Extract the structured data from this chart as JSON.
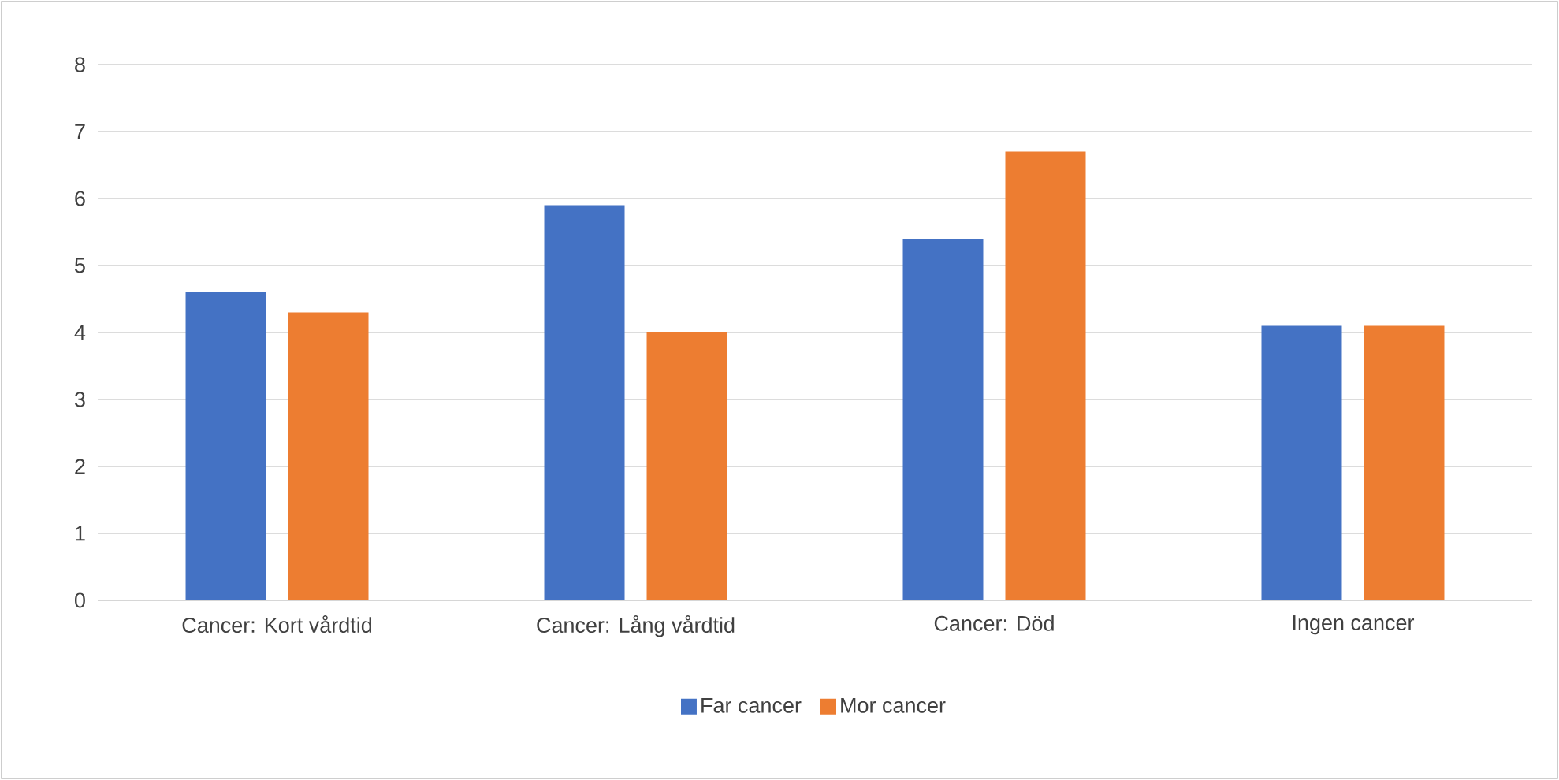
{
  "chart_data": {
    "type": "bar",
    "categories": [
      "Cancer: Kort vårdtid",
      "Cancer: Lång vårdtid",
      "Cancer: Död",
      "Ingen cancer"
    ],
    "series": [
      {
        "name": "Far cancer",
        "color": "#4472c4",
        "values": [
          4.6,
          5.9,
          5.4,
          4.1
        ]
      },
      {
        "name": "Mor cancer",
        "color": "#ed7d31",
        "values": [
          4.3,
          4.0,
          6.7,
          4.1
        ]
      }
    ],
    "ylim": [
      0,
      8
    ],
    "yticks": [
      0,
      1,
      2,
      3,
      4,
      5,
      6,
      7,
      8
    ],
    "grid": "y",
    "legend": "bottom"
  }
}
